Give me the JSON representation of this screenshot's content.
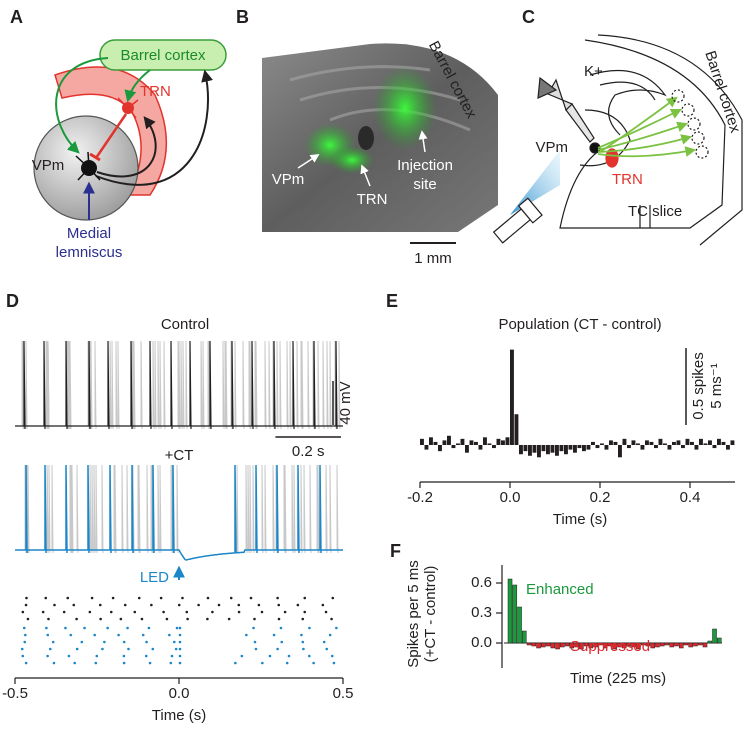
{
  "panel_letters": [
    "A",
    "B",
    "C",
    "D",
    "E",
    "F"
  ],
  "a": {
    "barrel_cortex": "Barrel cortex",
    "trn": "TRN",
    "vpm": "VPm",
    "medial": "Medial",
    "lemniscus": "lemniscus"
  },
  "b": {
    "barrel_cortex": "Barrel cortex",
    "vpm": "VPm",
    "trn": "TRN",
    "injection": "Injection",
    "site": "site",
    "scale": "1 mm"
  },
  "c": {
    "k": "K+",
    "vpm": "VPm",
    "trn": "TRN",
    "barrel_cortex": "Barrel cortex",
    "slice": "TC slice"
  },
  "chart_data": [
    {
      "type": "trace",
      "labels": {
        "control": "Control",
        "ct": "+CT",
        "led": "LED"
      },
      "xlim": [
        -0.5,
        0.5
      ],
      "xticks": [
        -0.5,
        {
          "value": 0,
          "label": "0.0"
        },
        0.5
      ],
      "xlabel": "Time (s)",
      "scale_bars": [
        {
          "value": 40,
          "label": "40 mV"
        },
        {
          "value": 0.2,
          "label": "0.2 s"
        }
      ],
      "colors": {
        "control": "#231f20",
        "ct": "#1b87c9",
        "overlay": "#c8c8c8"
      }
    },
    {
      "type": "histogram",
      "title": "Population (CT - control)",
      "bins": [
        -0.2,
        -0.19,
        -0.18,
        -0.17,
        -0.16,
        -0.15,
        -0.14,
        -0.13,
        -0.12,
        -0.11,
        -0.1,
        -0.09,
        -0.08,
        -0.07,
        -0.06,
        -0.05,
        -0.04,
        -0.03,
        -0.02,
        -0.01,
        0,
        0.01,
        0.02,
        0.03,
        0.04,
        0.05,
        0.06,
        0.07,
        0.08,
        0.09,
        0.1,
        0.11,
        0.12,
        0.13,
        0.14,
        0.15,
        0.16,
        0.17,
        0.18,
        0.19,
        0.2,
        0.21,
        0.22,
        0.23,
        0.24,
        0.25,
        0.26,
        0.27,
        0.28,
        0.29,
        0.3,
        0.31,
        0.32,
        0.33,
        0.34,
        0.35,
        0.36,
        0.37,
        0.38,
        0.39,
        0.4,
        0.41,
        0.42,
        0.43,
        0.44,
        0.45,
        0.46,
        0.47,
        0.48,
        0.49,
        0.5
      ],
      "values": [
        0.04,
        -0.03,
        0.05,
        0.02,
        -0.04,
        0.03,
        0.06,
        -0.02,
        0.01,
        0.04,
        -0.05,
        0.03,
        0.02,
        -0.03,
        0.05,
        0.01,
        -0.02,
        0.04,
        0.03,
        0.05,
        0.62,
        0.2,
        -0.06,
        -0.04,
        -0.07,
        -0.05,
        -0.08,
        -0.04,
        -0.06,
        -0.05,
        -0.07,
        -0.04,
        -0.06,
        -0.03,
        -0.05,
        -0.02,
        -0.04,
        -0.03,
        0.02,
        -0.02,
        0.01,
        -0.03,
        0.03,
        0.02,
        -0.08,
        0.04,
        -0.02,
        0.03,
        0.01,
        -0.03,
        0.03,
        0.02,
        -0.02,
        0.04,
        0.01,
        -0.03,
        0.02,
        0.03,
        -0.02,
        0.04,
        0.02,
        -0.03,
        0.04,
        0.01,
        0.03,
        -0.02,
        0.04,
        0.02,
        -0.03,
        0.03
      ],
      "color": "#231f20",
      "xlim": [
        -0.2,
        0.5
      ],
      "ylim": [
        -0.195,
        0.65
      ],
      "xticks": [
        -0.2,
        {
          "value": 0,
          "label": "0.0"
        },
        0.2,
        0.4
      ],
      "xlabel": "Time (s)",
      "scale_bar": {
        "value": 0.5,
        "label": "0.5 spikes",
        "unit": "5 ms⁻¹"
      }
    },
    {
      "type": "bar",
      "values": [
        0.64,
        0.58,
        0.36,
        0.12,
        -0.02,
        -0.03,
        -0.05,
        -0.04,
        -0.03,
        -0.05,
        -0.06,
        -0.04,
        -0.03,
        -0.05,
        -0.04,
        -0.06,
        -0.03,
        -0.05,
        -0.04,
        -0.02,
        -0.05,
        -0.03,
        -0.06,
        -0.04,
        -0.05,
        -0.03,
        -0.04,
        -0.06,
        -0.02,
        -0.03,
        -0.05,
        -0.04,
        -0.03,
        -0.02,
        -0.04,
        -0.03,
        -0.05,
        -0.02,
        -0.04,
        -0.03,
        -0.02,
        -0.04,
        0.02,
        0.14,
        0.05
      ],
      "ylim": [
        -0.2,
        0.78
      ],
      "yticks": [
        {
          "value": 0,
          "label": "0.0"
        },
        0.3,
        0.6
      ],
      "ylabel": [
        "Spikes per 5 ms",
        "(+CT - control)"
      ],
      "xlabel": "Time (225 ms)",
      "annotations": [
        {
          "text": "Enhanced",
          "color": "#1a9a3c"
        },
        {
          "text": "Suppressed",
          "color": "#e0262b"
        }
      ],
      "pos_color": "#1a9a3c",
      "neg_color": "#e0262b"
    }
  ]
}
